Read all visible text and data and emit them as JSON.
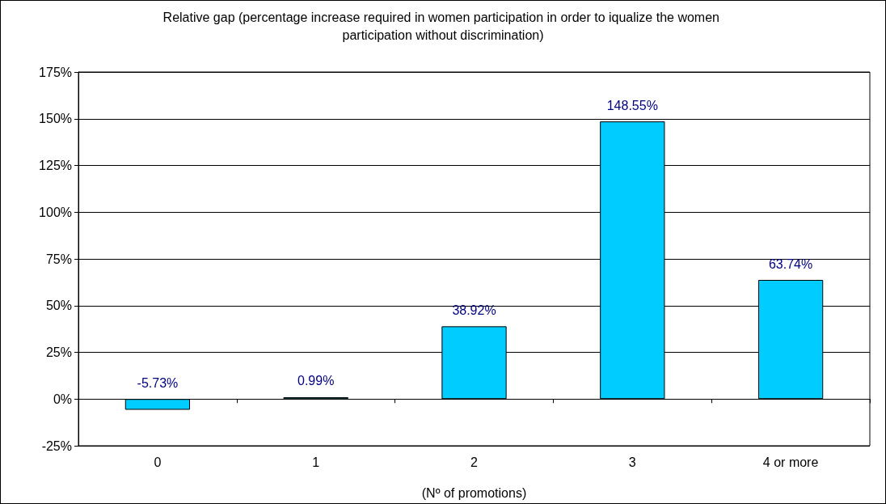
{
  "chart_data": {
    "type": "bar",
    "title": "Relative gap (percentage increase required in women participation in order to iqualize the women participation without discrimination)",
    "xlabel": "(Nº of promotions)",
    "categories": [
      "0",
      "1",
      "2",
      "3",
      "4 or more"
    ],
    "values": [
      -5.73,
      0.99,
      38.92,
      148.55,
      63.74
    ],
    "value_labels": [
      "-5.73%",
      "0.99%",
      "38.92%",
      "148.55%",
      "63.74%"
    ],
    "color": "#00ccff",
    "ylim": [
      -25,
      175
    ],
    "yticks": [
      {
        "value": -25,
        "label": "-25%"
      },
      {
        "value": 0,
        "label": "0%"
      },
      {
        "value": 25,
        "label": "25%"
      },
      {
        "value": 50,
        "label": "50%"
      },
      {
        "value": 75,
        "label": "75%"
      },
      {
        "value": 100,
        "label": "100%"
      },
      {
        "value": 125,
        "label": "125%"
      },
      {
        "value": 150,
        "label": "150%"
      },
      {
        "value": 175,
        "label": "175%"
      }
    ],
    "grid": "y"
  }
}
